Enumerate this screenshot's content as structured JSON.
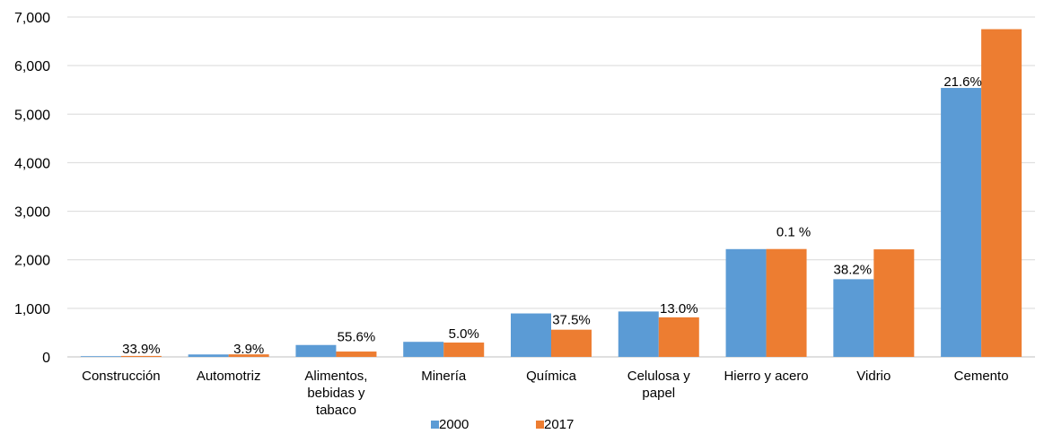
{
  "chart_data": {
    "type": "bar",
    "categories": [
      [
        "Construcción"
      ],
      [
        "Automotriz"
      ],
      [
        "Alimentos,",
        "bebidas y",
        "tabaco"
      ],
      [
        "Minería"
      ],
      [
        "Química"
      ],
      [
        "Celulosa y",
        "papel"
      ],
      [
        "Hierro y acero"
      ],
      [
        "Vidrio"
      ],
      [
        "Cemento"
      ]
    ],
    "series": [
      {
        "name": "2000",
        "color": "#5b9bd5",
        "values": [
          15,
          50,
          245,
          310,
          895,
          935,
          2220,
          1600,
          5540
        ]
      },
      {
        "name": "2017",
        "color": "#ed7d31",
        "values": [
          20,
          52,
          110,
          295,
          560,
          815,
          2222,
          2215,
          6750
        ]
      }
    ],
    "data_labels": [
      "33.9%",
      "3.9%",
      "55.6%",
      "5.0%",
      "37.5%",
      "13.0%",
      "0.1 %",
      "38.2%",
      "21.6%"
    ],
    "ylim": [
      0,
      7000
    ],
    "yticks": [
      "0",
      "1,000",
      "2,000",
      "3,000",
      "4,000",
      "5,000",
      "6,000",
      "7,000"
    ],
    "grid": true,
    "legend_position": "bottom"
  }
}
